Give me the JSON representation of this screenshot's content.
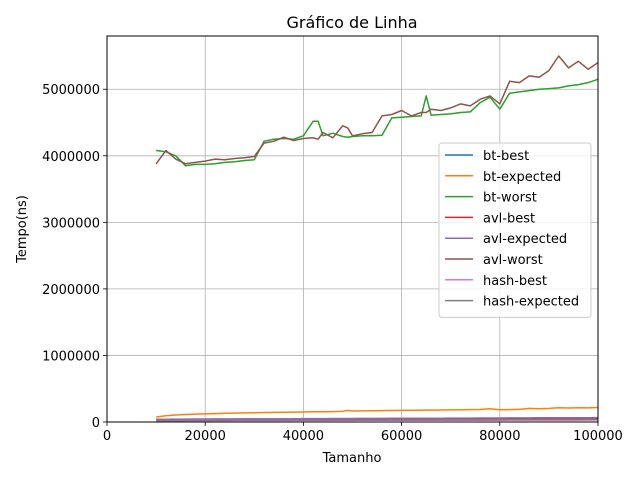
{
  "chart_data": {
    "type": "line",
    "title": "Gráfico de Linha",
    "xlabel": "Tamanho",
    "ylabel": "Tempo(ns)",
    "xlim": [
      0,
      100000
    ],
    "ylim": [
      0,
      5800000
    ],
    "xticks": [
      0,
      20000,
      40000,
      60000,
      80000,
      100000
    ],
    "xtick_labels": [
      "0",
      "20000",
      "40000",
      "60000",
      "80000",
      "100000"
    ],
    "yticks": [
      0,
      1000000,
      2000000,
      3000000,
      4000000,
      5000000
    ],
    "ytick_labels": [
      "0",
      "1000000",
      "2000000",
      "3000000",
      "4000000",
      "5000000"
    ],
    "grid": true,
    "legend_position": "center-right",
    "x": [
      10000,
      12000,
      14000,
      16000,
      18000,
      20000,
      22000,
      24000,
      26000,
      28000,
      30000,
      32000,
      34000,
      36000,
      38000,
      40000,
      42000,
      43000,
      44000,
      46000,
      48000,
      49000,
      50000,
      52000,
      54000,
      56000,
      58000,
      60000,
      62000,
      64000,
      65000,
      66000,
      68000,
      70000,
      72000,
      74000,
      76000,
      78000,
      80000,
      82000,
      84000,
      86000,
      88000,
      90000,
      92000,
      94000,
      96000,
      98000,
      100000
    ],
    "series": [
      {
        "name": "bt-best",
        "color": "#1f77b4",
        "values": [
          30000,
          31000,
          31500,
          32000,
          32500,
          33000,
          33500,
          34000,
          34500,
          35000,
          35500,
          36000,
          36500,
          37000,
          37500,
          38000,
          38500,
          38700,
          39000,
          39500,
          40000,
          40200,
          40500,
          41000,
          41500,
          42000,
          42500,
          43000,
          43500,
          44000,
          44200,
          44500,
          45000,
          45500,
          46000,
          46500,
          47000,
          47500,
          48000,
          48500,
          49000,
          49500,
          50000,
          50500,
          51000,
          51500,
          52000,
          52500,
          53000
        ]
      },
      {
        "name": "bt-expected",
        "color": "#ff7f0e",
        "values": [
          75000,
          95000,
          105000,
          112000,
          118000,
          122000,
          126000,
          130000,
          133000,
          136000,
          139000,
          142000,
          145000,
          147000,
          149000,
          151000,
          153000,
          154000,
          155000,
          157000,
          160000,
          175000,
          165000,
          167000,
          169000,
          171000,
          173000,
          175000,
          177000,
          178000,
          180000,
          179000,
          180000,
          182000,
          184000,
          186000,
          188000,
          200000,
          185000,
          187000,
          190000,
          205000,
          200000,
          205000,
          215000,
          210000,
          215000,
          212000,
          218000
        ]
      },
      {
        "name": "bt-worst",
        "color": "#2ca02c",
        "values": [
          4080000,
          4060000,
          4000000,
          3850000,
          3870000,
          3870000,
          3880000,
          3900000,
          3910000,
          3930000,
          3940000,
          4220000,
          4250000,
          4260000,
          4250000,
          4300000,
          4520000,
          4520000,
          4300000,
          4340000,
          4290000,
          4280000,
          4290000,
          4300000,
          4300000,
          4310000,
          4570000,
          4580000,
          4590000,
          4600000,
          4900000,
          4610000,
          4620000,
          4630000,
          4650000,
          4660000,
          4800000,
          4880000,
          4700000,
          4940000,
          4960000,
          4980000,
          5000000,
          5010000,
          5020000,
          5050000,
          5070000,
          5100000,
          5150000
        ]
      },
      {
        "name": "avl-best",
        "color": "#d62728",
        "values": [
          28000,
          29000,
          29500,
          30000,
          30500,
          31000,
          31500,
          32000,
          32500,
          33000,
          33500,
          34000,
          34500,
          35000,
          35500,
          36000,
          36500,
          36700,
          37000,
          37500,
          38000,
          38200,
          38500,
          39000,
          39500,
          40000,
          40500,
          41000,
          41500,
          42000,
          42200,
          42500,
          43000,
          43500,
          44000,
          44500,
          45000,
          45500,
          46000,
          46500,
          47000,
          47500,
          48000,
          48500,
          49000,
          49500,
          50000,
          50500,
          51000
        ]
      },
      {
        "name": "avl-expected",
        "color": "#9467bd",
        "values": [
          40000,
          42000,
          43000,
          44000,
          45000,
          45500,
          46000,
          46500,
          47000,
          47500,
          48000,
          48500,
          49000,
          49500,
          50000,
          50500,
          51000,
          51200,
          51500,
          52000,
          52500,
          52700,
          53000,
          53500,
          54000,
          54500,
          55000,
          55500,
          56000,
          56500,
          56700,
          57000,
          57500,
          58000,
          58500,
          59000,
          59500,
          60000,
          60500,
          61000,
          61500,
          62000,
          62500,
          63000,
          63500,
          64000,
          64500,
          65000,
          65500
        ]
      },
      {
        "name": "avl-worst",
        "color": "#8c564b",
        "values": [
          3880000,
          4080000,
          3950000,
          3880000,
          3900000,
          3920000,
          3950000,
          3940000,
          3960000,
          3970000,
          3990000,
          4190000,
          4220000,
          4280000,
          4230000,
          4260000,
          4270000,
          4250000,
          4350000,
          4270000,
          4450000,
          4420000,
          4300000,
          4330000,
          4350000,
          4600000,
          4620000,
          4680000,
          4600000,
          4650000,
          4650000,
          4700000,
          4680000,
          4720000,
          4780000,
          4750000,
          4850000,
          4900000,
          4780000,
          5120000,
          5100000,
          5200000,
          5180000,
          5280000,
          5500000,
          5320000,
          5420000,
          5300000,
          5400000
        ]
      },
      {
        "name": "hash-best",
        "color": "#e377c2",
        "values": [
          20000,
          20500,
          21000,
          21200,
          21400,
          21600,
          21800,
          22000,
          22200,
          22400,
          22600,
          22800,
          23000,
          23200,
          23400,
          23600,
          23800,
          23900,
          24000,
          24200,
          24400,
          24500,
          24600,
          24800,
          25000,
          25200,
          25400,
          25600,
          25800,
          26000,
          26100,
          26200,
          26400,
          26600,
          26800,
          27000,
          27200,
          27400,
          27600,
          27800,
          28000,
          28200,
          28400,
          28600,
          28800,
          29000,
          29200,
          29400,
          29600
        ]
      },
      {
        "name": "hash-expected",
        "color": "#7f7f7f",
        "values": [
          22000,
          22500,
          23000,
          23300,
          23600,
          23900,
          24200,
          24500,
          24800,
          25100,
          25400,
          25700,
          26000,
          26300,
          26600,
          26900,
          27200,
          27350,
          27500,
          27800,
          28100,
          28250,
          28400,
          28700,
          29000,
          29300,
          29600,
          29900,
          30200,
          30500,
          30650,
          30800,
          31100,
          31400,
          31700,
          32000,
          32300,
          32600,
          32900,
          33200,
          33500,
          33800,
          34100,
          34400,
          34700,
          35000,
          35300,
          35600,
          35900
        ]
      }
    ]
  }
}
